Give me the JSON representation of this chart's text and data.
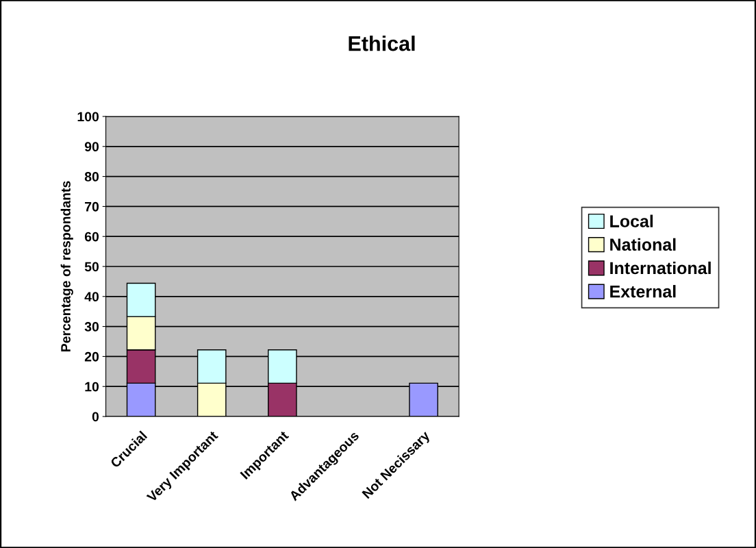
{
  "chart_data": {
    "type": "bar",
    "title": "Ethical",
    "ylabel": "Percentage of respondants",
    "stacked": true,
    "categories": [
      "Crucial",
      "Very Important",
      "Important",
      "Advantageous",
      "Not Necissary"
    ],
    "series": [
      {
        "name": "External",
        "color": "#9999ff",
        "values": [
          11.1,
          0,
          0,
          0,
          11.1
        ]
      },
      {
        "name": "International",
        "color": "#993366",
        "values": [
          11.1,
          0,
          11.1,
          0,
          0
        ]
      },
      {
        "name": "National",
        "color": "#ffffcc",
        "values": [
          11.1,
          11.1,
          0,
          0,
          0
        ]
      },
      {
        "name": "Local",
        "color": "#ccffff",
        "values": [
          11.1,
          11.1,
          11.1,
          0,
          0
        ]
      }
    ],
    "ylim": [
      0,
      100
    ],
    "yticks": [
      0,
      10,
      20,
      30,
      40,
      50,
      60,
      70,
      80,
      90,
      100
    ],
    "grid": "y",
    "legend": "right"
  }
}
